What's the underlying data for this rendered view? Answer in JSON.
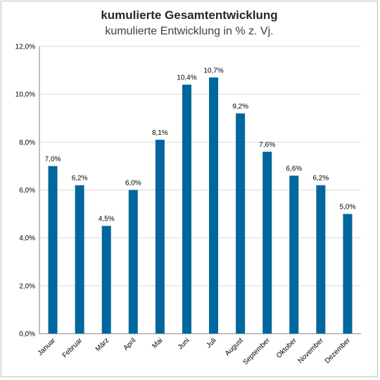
{
  "chart_data": {
    "type": "bar",
    "title": "kumulierte Gesamtentwicklung",
    "subtitle": "kumulierte Entwicklung in % z. Vj.",
    "categories": [
      "Januar",
      "Februar",
      "März",
      "April",
      "Mai",
      "Juni",
      "Juli",
      "August",
      "September",
      "Oktober",
      "November",
      "Dezember"
    ],
    "values": [
      7.0,
      6.2,
      4.5,
      6.0,
      8.1,
      10.4,
      10.7,
      9.2,
      7.6,
      6.6,
      6.2,
      5.0
    ],
    "data_labels": [
      "7,0%",
      "6,2%",
      "4,5%",
      "6,0%",
      "8,1%",
      "10,4%",
      "10,7%",
      "9,2%",
      "7,6%",
      "6,6%",
      "6,2%",
      "5,0%"
    ],
    "ylim": [
      0,
      12
    ],
    "yticks": [
      0,
      2,
      4,
      6,
      8,
      10,
      12
    ],
    "ytick_labels": [
      "0,0%",
      "2,0%",
      "4,0%",
      "6,0%",
      "8,0%",
      "10,0%",
      "12,0%"
    ],
    "grid": true,
    "bar_color": "#00679e",
    "grid_color": "#d9d9d9"
  }
}
